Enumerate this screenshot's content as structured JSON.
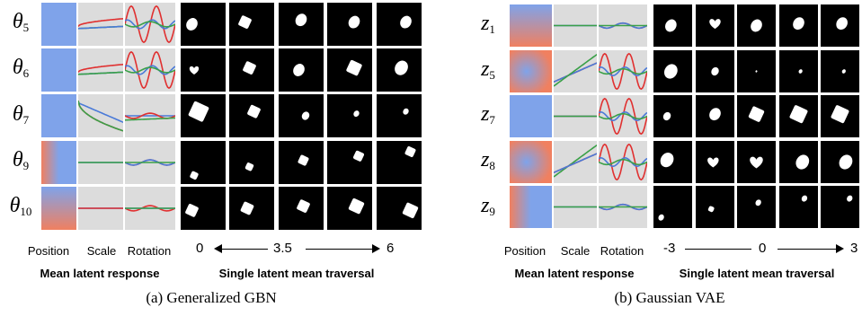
{
  "panels": [
    {
      "id": "a",
      "rows": [
        {
          "symbol": "θ",
          "subscript": "5"
        },
        {
          "symbol": "θ",
          "subscript": "6"
        },
        {
          "symbol": "θ",
          "subscript": "7"
        },
        {
          "symbol": "θ",
          "subscript": "9"
        },
        {
          "symbol": "θ",
          "subscript": "10"
        }
      ],
      "column_headers": [
        "Position",
        "Scale",
        "Rotation"
      ],
      "section_left": "Mean latent response",
      "section_right": "Single latent mean traversal",
      "axis": {
        "start": "0",
        "middle": "3.5",
        "end": "6"
      },
      "caption": "(a)  Generalized GBN"
    },
    {
      "id": "b",
      "rows": [
        {
          "symbol": "z",
          "subscript": "1"
        },
        {
          "symbol": "z",
          "subscript": "5"
        },
        {
          "symbol": "z",
          "subscript": "7"
        },
        {
          "symbol": "z",
          "subscript": "8"
        },
        {
          "symbol": "z",
          "subscript": "9"
        }
      ],
      "column_headers": [
        "Position",
        "Scale",
        "Rotation"
      ],
      "section_left": "Mean latent response",
      "section_right": "Single latent mean traversal",
      "axis": {
        "start": "-3",
        "middle": "0",
        "end": "3"
      },
      "caption": "(b)  Gaussian VAE"
    }
  ],
  "colors": {
    "line_red": "#e03030",
    "line_blue": "#4a7ad8",
    "line_green": "#3aa048",
    "heat_blue": "#7fa3ea",
    "heat_red": "#f08060",
    "cell_gray": "#dcdcdc",
    "traversal_bg": "#000000",
    "shape_fill": "#ffffff"
  }
}
